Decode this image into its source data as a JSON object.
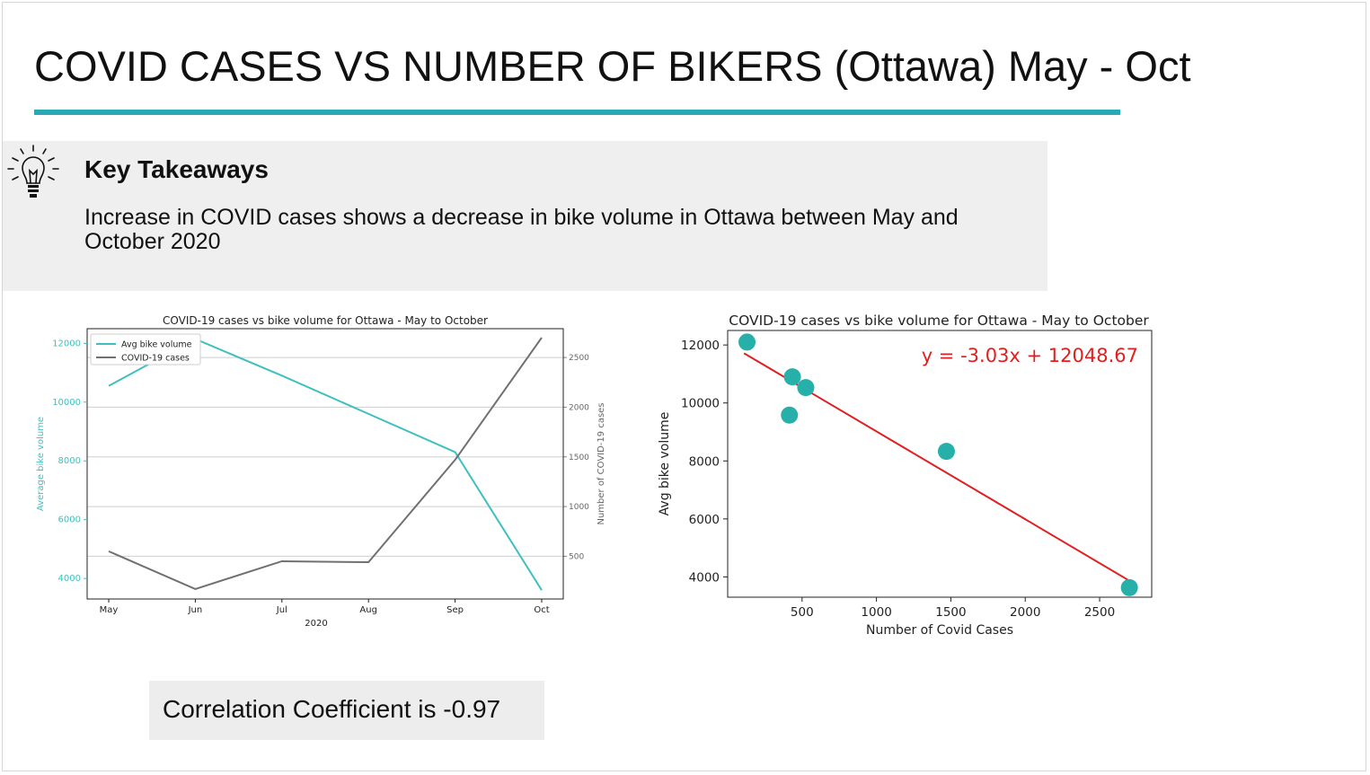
{
  "slide": {
    "title": "COVID CASES VS NUMBER OF BIKERS (Ottawa) May - Oct",
    "accent_color": "#2aa8b6",
    "takeaway_icon": "lightbulb-icon",
    "takeaway_heading": "Key Takeaways",
    "takeaway_text": "Increase in COVID cases shows a decrease in bike volume in Ottawa between May and October 2020",
    "correlation_text": "Correlation Coefficient is -0.97"
  },
  "chart_data": [
    {
      "type": "line",
      "title": "COVID-19 cases vs bike volume for Ottawa - May to October",
      "xlabel": "2020",
      "ylabel": "Average bike volume",
      "y2label": "Number of COVID-19 cases",
      "categories": [
        "May",
        "Jun",
        "Jul",
        "Aug",
        "Sep",
        "Oct"
      ],
      "ylim": [
        3300,
        12500
      ],
      "y_ticks": [
        4000,
        6000,
        8000,
        10000,
        12000
      ],
      "y2lim": [
        70,
        2790
      ],
      "y2_ticks": [
        500,
        1000,
        1500,
        2000,
        2500
      ],
      "grid": true,
      "legend_position": "top-left",
      "series": [
        {
          "name": "Avg bike volume",
          "axis": "left",
          "color": "#3fbfbf",
          "values": [
            10550,
            12150,
            10900,
            9600,
            8300,
            3600
          ]
        },
        {
          "name": "COVID-19 cases",
          "axis": "right",
          "color": "#707070",
          "values": [
            550,
            170,
            450,
            440,
            1470,
            2700
          ]
        }
      ]
    },
    {
      "type": "scatter",
      "title": "COVID-19 cases vs bike volume for Ottawa - May to October",
      "xlabel": "Number of Covid Cases",
      "ylabel": "Avg bike volume",
      "xlim": [
        0,
        2850
      ],
      "x_ticks": [
        500,
        1000,
        1500,
        2000,
        2500
      ],
      "ylim": [
        3300,
        12500
      ],
      "y_ticks": [
        4000,
        6000,
        8000,
        10000,
        12000
      ],
      "grid": false,
      "points": [
        {
          "x": 130,
          "y": 12100
        },
        {
          "x": 435,
          "y": 10900
        },
        {
          "x": 525,
          "y": 10530
        },
        {
          "x": 415,
          "y": 9580
        },
        {
          "x": 1470,
          "y": 8330
        },
        {
          "x": 2700,
          "y": 3630
        }
      ],
      "point_color": "#26b0a9",
      "trendline": {
        "slope": -3.03,
        "intercept": 12048.67,
        "x_range": [
          110,
          2700
        ],
        "color": "#e02020"
      },
      "annotation": "y = -3.03x + 12048.67"
    }
  ]
}
